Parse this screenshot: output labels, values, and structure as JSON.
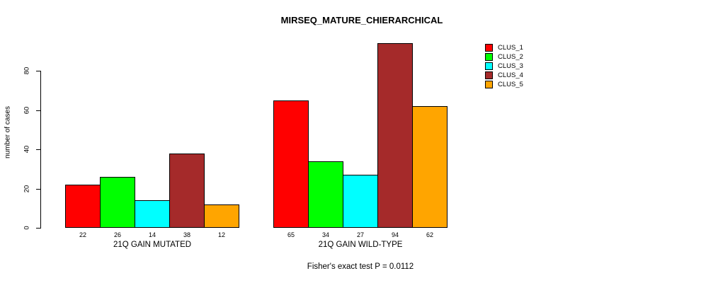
{
  "chart_data": {
    "type": "bar",
    "title": "MIRSEQ_MATURE_CHIERARCHICAL",
    "ylabel": "number of cases",
    "xlabel": "",
    "categories": [
      "21Q GAIN MUTATED",
      "21Q GAIN WILD-TYPE"
    ],
    "series": [
      {
        "name": "CLUS_1",
        "color": "#FF0000",
        "values": [
          22,
          65
        ]
      },
      {
        "name": "CLUS_2",
        "color": "#00FF00",
        "values": [
          26,
          34
        ]
      },
      {
        "name": "CLUS_3",
        "color": "#00FFFF",
        "values": [
          14,
          27
        ]
      },
      {
        "name": "CLUS_4",
        "color": "#A52A2A",
        "values": [
          38,
          94
        ]
      },
      {
        "name": "CLUS_5",
        "color": "#FFA500",
        "values": [
          12,
          62
        ]
      }
    ],
    "yticks": [
      0,
      20,
      40,
      60,
      80
    ],
    "ylim": [
      0,
      95
    ],
    "grid": false,
    "show_values_under_bars": true,
    "legend_position": "right",
    "legend_entries": [
      "CLUS_1",
      "CLUS_2",
      "CLUS_3",
      "CLUS_4",
      "CLUS_5"
    ],
    "annotation": "Fisher's exact test P = 0.0112",
    "bar_border_color": "#000000",
    "text_color": "#000000",
    "background_color": "#FFFFFF"
  }
}
